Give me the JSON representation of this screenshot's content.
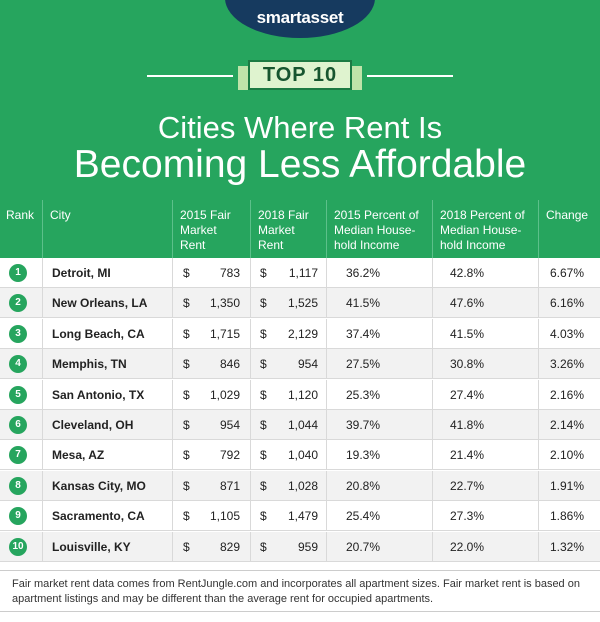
{
  "header": {
    "logo": "smartasset",
    "banner": "TOP 10",
    "title_line1": "Cities Where Rent Is",
    "title_line2": "Becoming Less Affordable"
  },
  "table": {
    "currency": "$",
    "columns": [
      [
        "Rank"
      ],
      [
        "City"
      ],
      [
        "2015 Fair",
        "Market",
        "Rent"
      ],
      [
        "2018 Fair",
        "Market",
        "Rent"
      ],
      [
        "2015 Percent of",
        "Median House-",
        "hold Income"
      ],
      [
        "2018 Percent of",
        "Median House-",
        "hold Income"
      ],
      [
        "Change"
      ]
    ],
    "rows": [
      [
        "1",
        "Detroit, MI",
        "783",
        "1,117",
        "36.2%",
        "42.8%",
        "6.67%"
      ],
      [
        "2",
        "New Orleans, LA",
        "1,350",
        "1,525",
        "41.5%",
        "47.6%",
        "6.16%"
      ],
      [
        "3",
        "Long Beach, CA",
        "1,715",
        "2,129",
        "37.4%",
        "41.5%",
        "4.03%"
      ],
      [
        "4",
        "Memphis, TN",
        "846",
        "954",
        "27.5%",
        "30.8%",
        "3.26%"
      ],
      [
        "5",
        "San Antonio, TX",
        "1,029",
        "1,120",
        "25.3%",
        "27.4%",
        "2.16%"
      ],
      [
        "6",
        "Cleveland, OH",
        "954",
        "1,044",
        "39.7%",
        "41.8%",
        "2.14%"
      ],
      [
        "7",
        "Mesa, AZ",
        "792",
        "1,040",
        "19.3%",
        "21.4%",
        "2.10%"
      ],
      [
        "8",
        "Kansas City, MO",
        "871",
        "1,028",
        "20.8%",
        "22.7%",
        "1.91%"
      ],
      [
        "9",
        "Sacramento, CA",
        "1,105",
        "1,479",
        "25.4%",
        "27.3%",
        "1.86%"
      ],
      [
        "10",
        "Louisville, KY",
        "829",
        "959",
        "20.7%",
        "22.0%",
        "1.32%"
      ]
    ]
  },
  "footer": {
    "note": "Fair market rent data comes from RentJungle.com and incorporates all apartment sizes. Fair market rent is based on apartment listings and may be different than the average rent for occupied apartments."
  }
}
